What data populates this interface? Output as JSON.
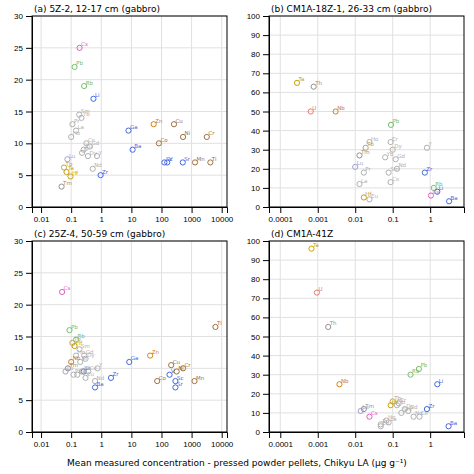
{
  "xlabel": "Mean measured concentration - pressed powder pellets, Chikyu LA (μg g⁻¹)",
  "chart_data": [
    {
      "type": "scatter",
      "title": "(a) 5Z-2, 12-17 cm (gabbro)",
      "log": "x",
      "grid": true,
      "xlim": [
        0.005,
        15000
      ],
      "ylim": [
        0,
        30
      ],
      "xticks": [
        0.01,
        0.1,
        1,
        10,
        100,
        1000,
        10000
      ],
      "yticks": [
        0,
        5,
        10,
        15,
        20,
        25,
        30
      ],
      "annotations": [
        "Ta",
        "Hf",
        "Tm",
        "Lu",
        "Tb",
        "Pb",
        "Cs",
        "Pr",
        "La",
        "Ho",
        "Sm",
        "Yb",
        "Rb",
        "Li",
        "Eu",
        "Er",
        "Ce",
        "Gd",
        "Dy",
        "Nd",
        "Y",
        "Zr",
        "Ga",
        "Ba",
        "Zn",
        "Co",
        "Sc",
        "V",
        "Cu",
        "Ni",
        "Sr",
        "Mn",
        "Cr",
        "Ti"
      ],
      "x": [
        0.07,
        0.095,
        0.048,
        0.075,
        0.058,
        0.13,
        0.19,
        0.11,
        0.145,
        0.1,
        0.185,
        0.22,
        0.27,
        0.55,
        0.26,
        0.23,
        0.32,
        0.42,
        0.36,
        0.52,
        0.72,
        0.95,
        8,
        11,
        55,
        82,
        125,
        155,
        260,
        520,
        510,
        1300,
        3200,
        4200
      ],
      "values": [
        5.5,
        4.8,
        3.2,
        7.5,
        6.2,
        22,
        25,
        13,
        12,
        11,
        14.5,
        14,
        19,
        17,
        9,
        8.5,
        10,
        9.5,
        8,
        6,
        8,
        5,
        12,
        9,
        13,
        10,
        7,
        7,
        13,
        11,
        7,
        7,
        11,
        7
      ],
      "colors": [
        "#c8a000",
        "#c8a000",
        "#909090",
        "#a0a0d0",
        "#c0a060",
        "#70c070",
        "#e060c0",
        "#b0b0b0",
        "#b0b0b0",
        "#b0b0b0",
        "#b0b0b0",
        "#b0b0b0",
        "#70c070",
        "#4169e1",
        "#b0b0b0",
        "#b0b0b0",
        "#b0b0b0",
        "#b0b0b0",
        "#b0b0b0",
        "#b0b0b0",
        "#b0b0b0",
        "#4169e1",
        "#4169e1",
        "#4169e1",
        "#d08020",
        "#a07040",
        "#4169e1",
        "#4169e1",
        "#a07040",
        "#a07040",
        "#4169e1",
        "#a07040",
        "#a07040",
        "#a07040"
      ]
    },
    {
      "type": "scatter",
      "title": "(b) CM1A-18Z-1, 26-33 cm (gabbro)",
      "log": "x",
      "grid": true,
      "xlim": [
        5e-05,
        8
      ],
      "ylim": [
        0,
        100
      ],
      "xticks": [
        0.0001,
        0.001,
        0.01,
        0.1,
        1
      ],
      "yticks": [
        0,
        10,
        20,
        30,
        40,
        50,
        60,
        70,
        80,
        90,
        100
      ],
      "annotations": [
        "Ta",
        "Th",
        "U",
        "Nb",
        "Pb",
        "Ho",
        "Tb",
        "Er",
        "Dy",
        "Y",
        "Tm",
        "Yb",
        "Gd",
        "Lu",
        "Pr",
        "Sm",
        "Nd",
        "Zr",
        "Ce",
        "La",
        "Rb",
        "Eu",
        "Hf",
        "Cs",
        "Li",
        "Ba"
      ],
      "x": [
        0.00028,
        0.00078,
        0.00065,
        0.003,
        0.09,
        0.024,
        0.019,
        0.088,
        0.1,
        0.82,
        0.013,
        0.063,
        0.12,
        0.01,
        0.017,
        0.078,
        0.13,
        0.72,
        0.088,
        0.013,
        1.25,
        0.024,
        0.017,
        1.05,
        1.55,
        3.2
      ],
      "values": [
        65,
        63,
        50,
        50,
        43,
        34,
        31,
        34,
        30,
        31,
        27,
        26,
        25,
        21,
        18,
        18,
        20,
        18,
        13,
        12,
        10,
        4,
        5,
        6,
        8,
        3
      ],
      "colors": [
        "#c8a000",
        "#909090",
        "#e08070",
        "#d08020",
        "#70c070",
        "#b0b0b0",
        "#c0a060",
        "#b0b0b0",
        "#b0b0b0",
        "#b0b0b0",
        "#909090",
        "#b0b0b0",
        "#b0b0b0",
        "#a0a0d0",
        "#b0b0b0",
        "#b0b0b0",
        "#b0b0b0",
        "#4169e1",
        "#b0b0b0",
        "#b0b0b0",
        "#70c070",
        "#b0b0b0",
        "#c8a000",
        "#e060c0",
        "#4169e1",
        "#4169e1"
      ]
    },
    {
      "type": "scatter",
      "title": "(c) 25Z-4, 50-59 cm (gabbro)",
      "log": "x",
      "grid": true,
      "xlim": [
        0.005,
        15000
      ],
      "ylim": [
        0,
        30
      ],
      "xticks": [
        0.01,
        0.1,
        1,
        10,
        100,
        1000,
        10000
      ],
      "yticks": [
        0,
        5,
        10,
        15,
        20,
        25,
        30
      ],
      "annotations": [
        "Cs",
        "Pb",
        "Tb",
        "Hf",
        "Sm",
        "Gd",
        "Rb",
        "Ho",
        "Er",
        "Dy",
        "Nb",
        "Tm",
        "Lu",
        "Pr",
        "La",
        "Li",
        "Eu",
        "Yb",
        "Ce",
        "Nd",
        "Y",
        "Zr",
        "Ga",
        "Ba",
        "Zn",
        "Co",
        "Cu",
        "Sc",
        "Ni",
        "V",
        "Cr",
        "Sr",
        "Mn",
        "Ti"
      ],
      "x": [
        0.05,
        0.088,
        0.11,
        0.13,
        0.19,
        0.27,
        0.145,
        0.145,
        0.2,
        0.3,
        0.1,
        0.078,
        0.065,
        0.12,
        0.16,
        0.26,
        0.3,
        0.23,
        0.37,
        0.62,
        0.75,
        2.1,
        8.5,
        0.62,
        42,
        72,
        210,
        290,
        320,
        185,
        520,
        290,
        1250,
        6200
      ],
      "values": [
        22,
        16,
        14,
        13.5,
        13,
        12,
        14.5,
        12,
        11,
        11.5,
        11,
        10,
        9.5,
        9,
        9,
        9.5,
        8.5,
        9.5,
        9.5,
        8,
        10,
        8.5,
        11,
        7,
        12,
        8,
        10.5,
        8,
        9.5,
        9,
        10,
        7,
        8,
        16.5
      ],
      "colors": [
        "#e060c0",
        "#70c070",
        "#c0a060",
        "#c8a000",
        "#b0b0b0",
        "#b0b0b0",
        "#70c070",
        "#b0b0b0",
        "#b0b0b0",
        "#b0b0b0",
        "#d08020",
        "#909090",
        "#a0a0d0",
        "#b0b0b0",
        "#b0b0b0",
        "#4169e1",
        "#b0b0b0",
        "#b0b0b0",
        "#b0b0b0",
        "#b0b0b0",
        "#b0b0b0",
        "#4169e1",
        "#4169e1",
        "#4169e1",
        "#d08020",
        "#a07040",
        "#a07040",
        "#4169e1",
        "#a07040",
        "#4169e1",
        "#a07040",
        "#4169e1",
        "#a07040",
        "#a07040"
      ]
    },
    {
      "type": "scatter",
      "title": "(d) CM1A-41Z",
      "log": "x",
      "grid": true,
      "xlim": [
        5e-05,
        8
      ],
      "ylim": [
        0,
        100
      ],
      "xticks": [
        0.0001,
        0.001,
        0.01,
        0.1,
        1
      ],
      "yticks": [
        0,
        10,
        20,
        30,
        40,
        50,
        60,
        70,
        80,
        90,
        100
      ],
      "annotations": [
        "Ta",
        "U",
        "Th",
        "Nb",
        "Rb",
        "Pb",
        "Li",
        "Tb",
        "Hf",
        "Yb",
        "Er",
        "Dy",
        "Gd",
        "Zr",
        "Lu",
        "Tm",
        "Sm",
        "Nd",
        "Ce",
        "La",
        "Ho",
        "Eu",
        "Pr",
        "Cs",
        "Ba"
      ],
      "x": [
        0.00068,
        0.00095,
        0.0019,
        0.0038,
        0.3,
        0.5,
        1.55,
        0.1,
        0.088,
        0.13,
        0.145,
        0.21,
        0.26,
        0.82,
        0.014,
        0.017,
        0.17,
        0.36,
        0.52,
        0.078,
        0.068,
        0.048,
        0.048,
        0.024,
        3.1
      ],
      "values": [
        96,
        73,
        55,
        25,
        30,
        33,
        25,
        16,
        14,
        14,
        15,
        12,
        11,
        12,
        11,
        12,
        10,
        8,
        8,
        5,
        6,
        3,
        4,
        8,
        3
      ],
      "colors": [
        "#c8a000",
        "#e08070",
        "#909090",
        "#d08020",
        "#70c070",
        "#70c070",
        "#4169e1",
        "#c0a060",
        "#c8a000",
        "#b0b0b0",
        "#b0b0b0",
        "#b0b0b0",
        "#b0b0b0",
        "#4169e1",
        "#a0a0d0",
        "#909090",
        "#b0b0b0",
        "#b0b0b0",
        "#b0b0b0",
        "#b0b0b0",
        "#b0b0b0",
        "#b0b0b0",
        "#b0b0b0",
        "#e060c0",
        "#4169e1"
      ]
    }
  ]
}
